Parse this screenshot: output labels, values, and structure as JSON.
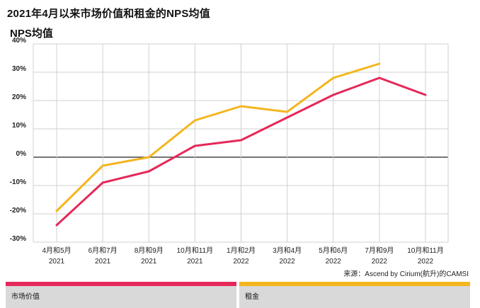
{
  "chart_data": {
    "type": "line",
    "title": "2021年4月以来市场价值和租金的NPS均值",
    "subtitle": "NPS均值",
    "categories": [
      [
        "4月和5月",
        "2021"
      ],
      [
        "6月和7月",
        "2021"
      ],
      [
        "8月和9月",
        "2021"
      ],
      [
        "10月和11月",
        "2021"
      ],
      [
        "1月和2月",
        "2022"
      ],
      [
        "3月和4月",
        "2022"
      ],
      [
        "5月和6月",
        "2022"
      ],
      [
        "7月和9月",
        "2022"
      ],
      [
        "10月和11月",
        "2022"
      ]
    ],
    "yticks": [
      "40%",
      "30%",
      "20%",
      "10%",
      "0%",
      "-10%",
      "-20%",
      "-30%"
    ],
    "ylim": [
      -30,
      40
    ],
    "grid": true,
    "series": [
      {
        "name": "市场价值",
        "color": "#e5285a",
        "values": [
          -24,
          -9,
          -5,
          4,
          6,
          14,
          22,
          28,
          22
        ]
      },
      {
        "name": "租金",
        "color": "#f5b51e",
        "values": [
          -19,
          -3,
          0,
          13,
          18,
          16,
          28,
          33,
          null
        ]
      }
    ],
    "source": "来源：Ascend by Cirium(航升)的CAMSI"
  }
}
